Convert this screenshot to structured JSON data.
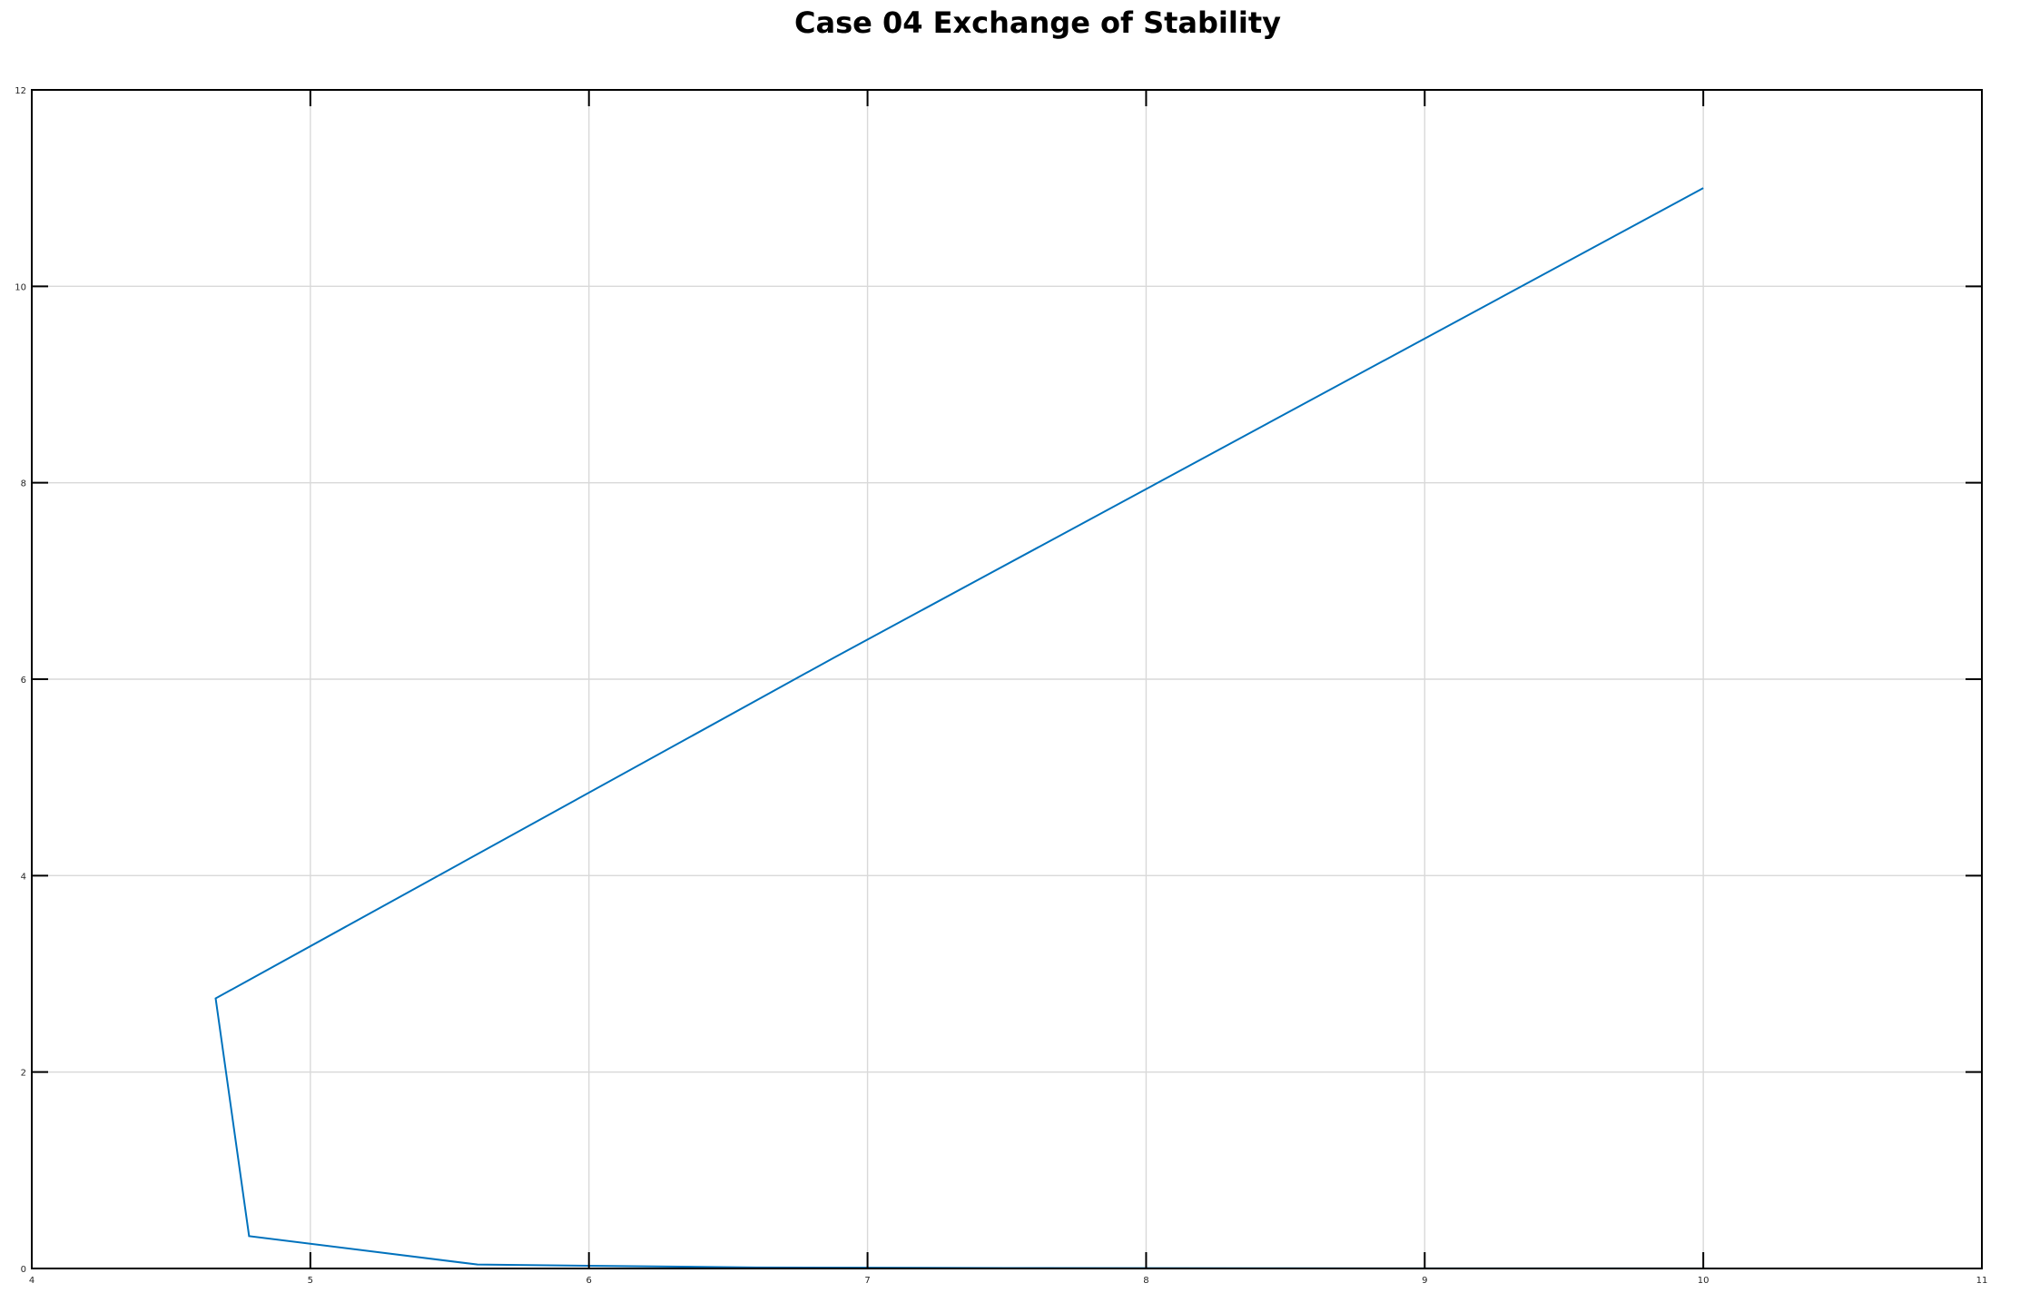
{
  "chart_data": {
    "type": "line",
    "title": "Case 04 Exchange of Stability",
    "xlabel": "",
    "ylabel": "",
    "xlim": [
      4,
      11
    ],
    "ylim": [
      0,
      12
    ],
    "xticks": [
      "4",
      "5",
      "6",
      "7",
      "8",
      "9",
      "10",
      "11"
    ],
    "yticks": [
      "0",
      "2",
      "4",
      "6",
      "8",
      "10",
      "12"
    ],
    "grid": true,
    "legend": "none",
    "series": [
      {
        "color": "#0072BD",
        "x": [
          10.0,
          6.88,
          4.66,
          4.78,
          5.6,
          6.6,
          7.5,
          8.5,
          9.5,
          10.12
        ],
        "y": [
          11.0,
          6.22,
          2.75,
          0.33,
          0.04,
          0.01,
          0.005,
          0.002,
          0.001,
          0.0
        ]
      }
    ]
  }
}
